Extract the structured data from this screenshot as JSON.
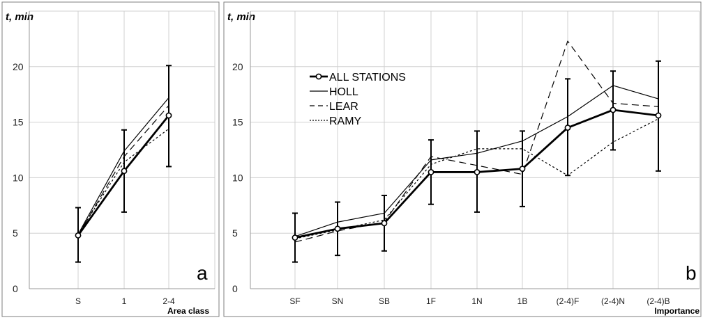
{
  "chart_data": [
    {
      "type": "line",
      "panel_letter": "a",
      "ylabel": "t, min",
      "xlabel": "Area class",
      "ylim": [
        0,
        25
      ],
      "yticks": [
        0,
        5,
        10,
        15,
        20
      ],
      "grid": true,
      "categories": [
        "S",
        "1",
        "2-4"
      ],
      "series": [
        {
          "name": "ALL STATIONS",
          "style": "bold-circles",
          "values": [
            4.8,
            10.6,
            15.6
          ],
          "err_low": [
            2.4,
            6.9,
            11.0
          ],
          "err_high": [
            7.3,
            14.3,
            20.1
          ]
        },
        {
          "name": "HOLL",
          "style": "solid",
          "values": [
            4.9,
            12.4,
            17.2
          ]
        },
        {
          "name": "LEAR",
          "style": "dashed",
          "values": [
            4.8,
            11.9,
            16.5
          ]
        },
        {
          "name": "RAMY",
          "style": "dotted",
          "values": [
            4.9,
            11.4,
            14.4
          ]
        }
      ]
    },
    {
      "type": "line",
      "panel_letter": "b",
      "ylabel": "t, min",
      "xlabel": "Importance",
      "ylim": [
        0,
        25
      ],
      "yticks": [
        0,
        5,
        10,
        15,
        20
      ],
      "grid": true,
      "legend_position": "top-left",
      "categories": [
        "SF",
        "SN",
        "SB",
        "1F",
        "1N",
        "1B",
        "(2-4)F",
        "(2-4)N",
        "(2-4)B"
      ],
      "series": [
        {
          "name": "ALL STATIONS",
          "style": "bold-circles",
          "values": [
            4.6,
            5.4,
            5.9,
            10.5,
            10.5,
            10.8,
            14.5,
            16.1,
            15.6
          ],
          "err_low": [
            2.4,
            3.0,
            3.4,
            7.6,
            6.9,
            7.4,
            10.2,
            12.5,
            10.6
          ],
          "err_high": [
            6.8,
            7.8,
            8.4,
            13.4,
            14.2,
            14.2,
            18.9,
            19.6,
            20.5
          ]
        },
        {
          "name": "HOLL",
          "style": "solid",
          "values": [
            4.7,
            6.0,
            6.8,
            11.6,
            12.2,
            13.3,
            15.5,
            18.3,
            17.1
          ]
        },
        {
          "name": "LEAR",
          "style": "dashed",
          "values": [
            4.2,
            5.2,
            6.0,
            11.9,
            11.1,
            10.3,
            22.3,
            16.7,
            16.4
          ]
        },
        {
          "name": "RAMY",
          "style": "dotted",
          "values": [
            4.5,
            5.3,
            6.2,
            11.2,
            12.6,
            12.6,
            10.2,
            13.2,
            15.3
          ]
        }
      ]
    }
  ]
}
